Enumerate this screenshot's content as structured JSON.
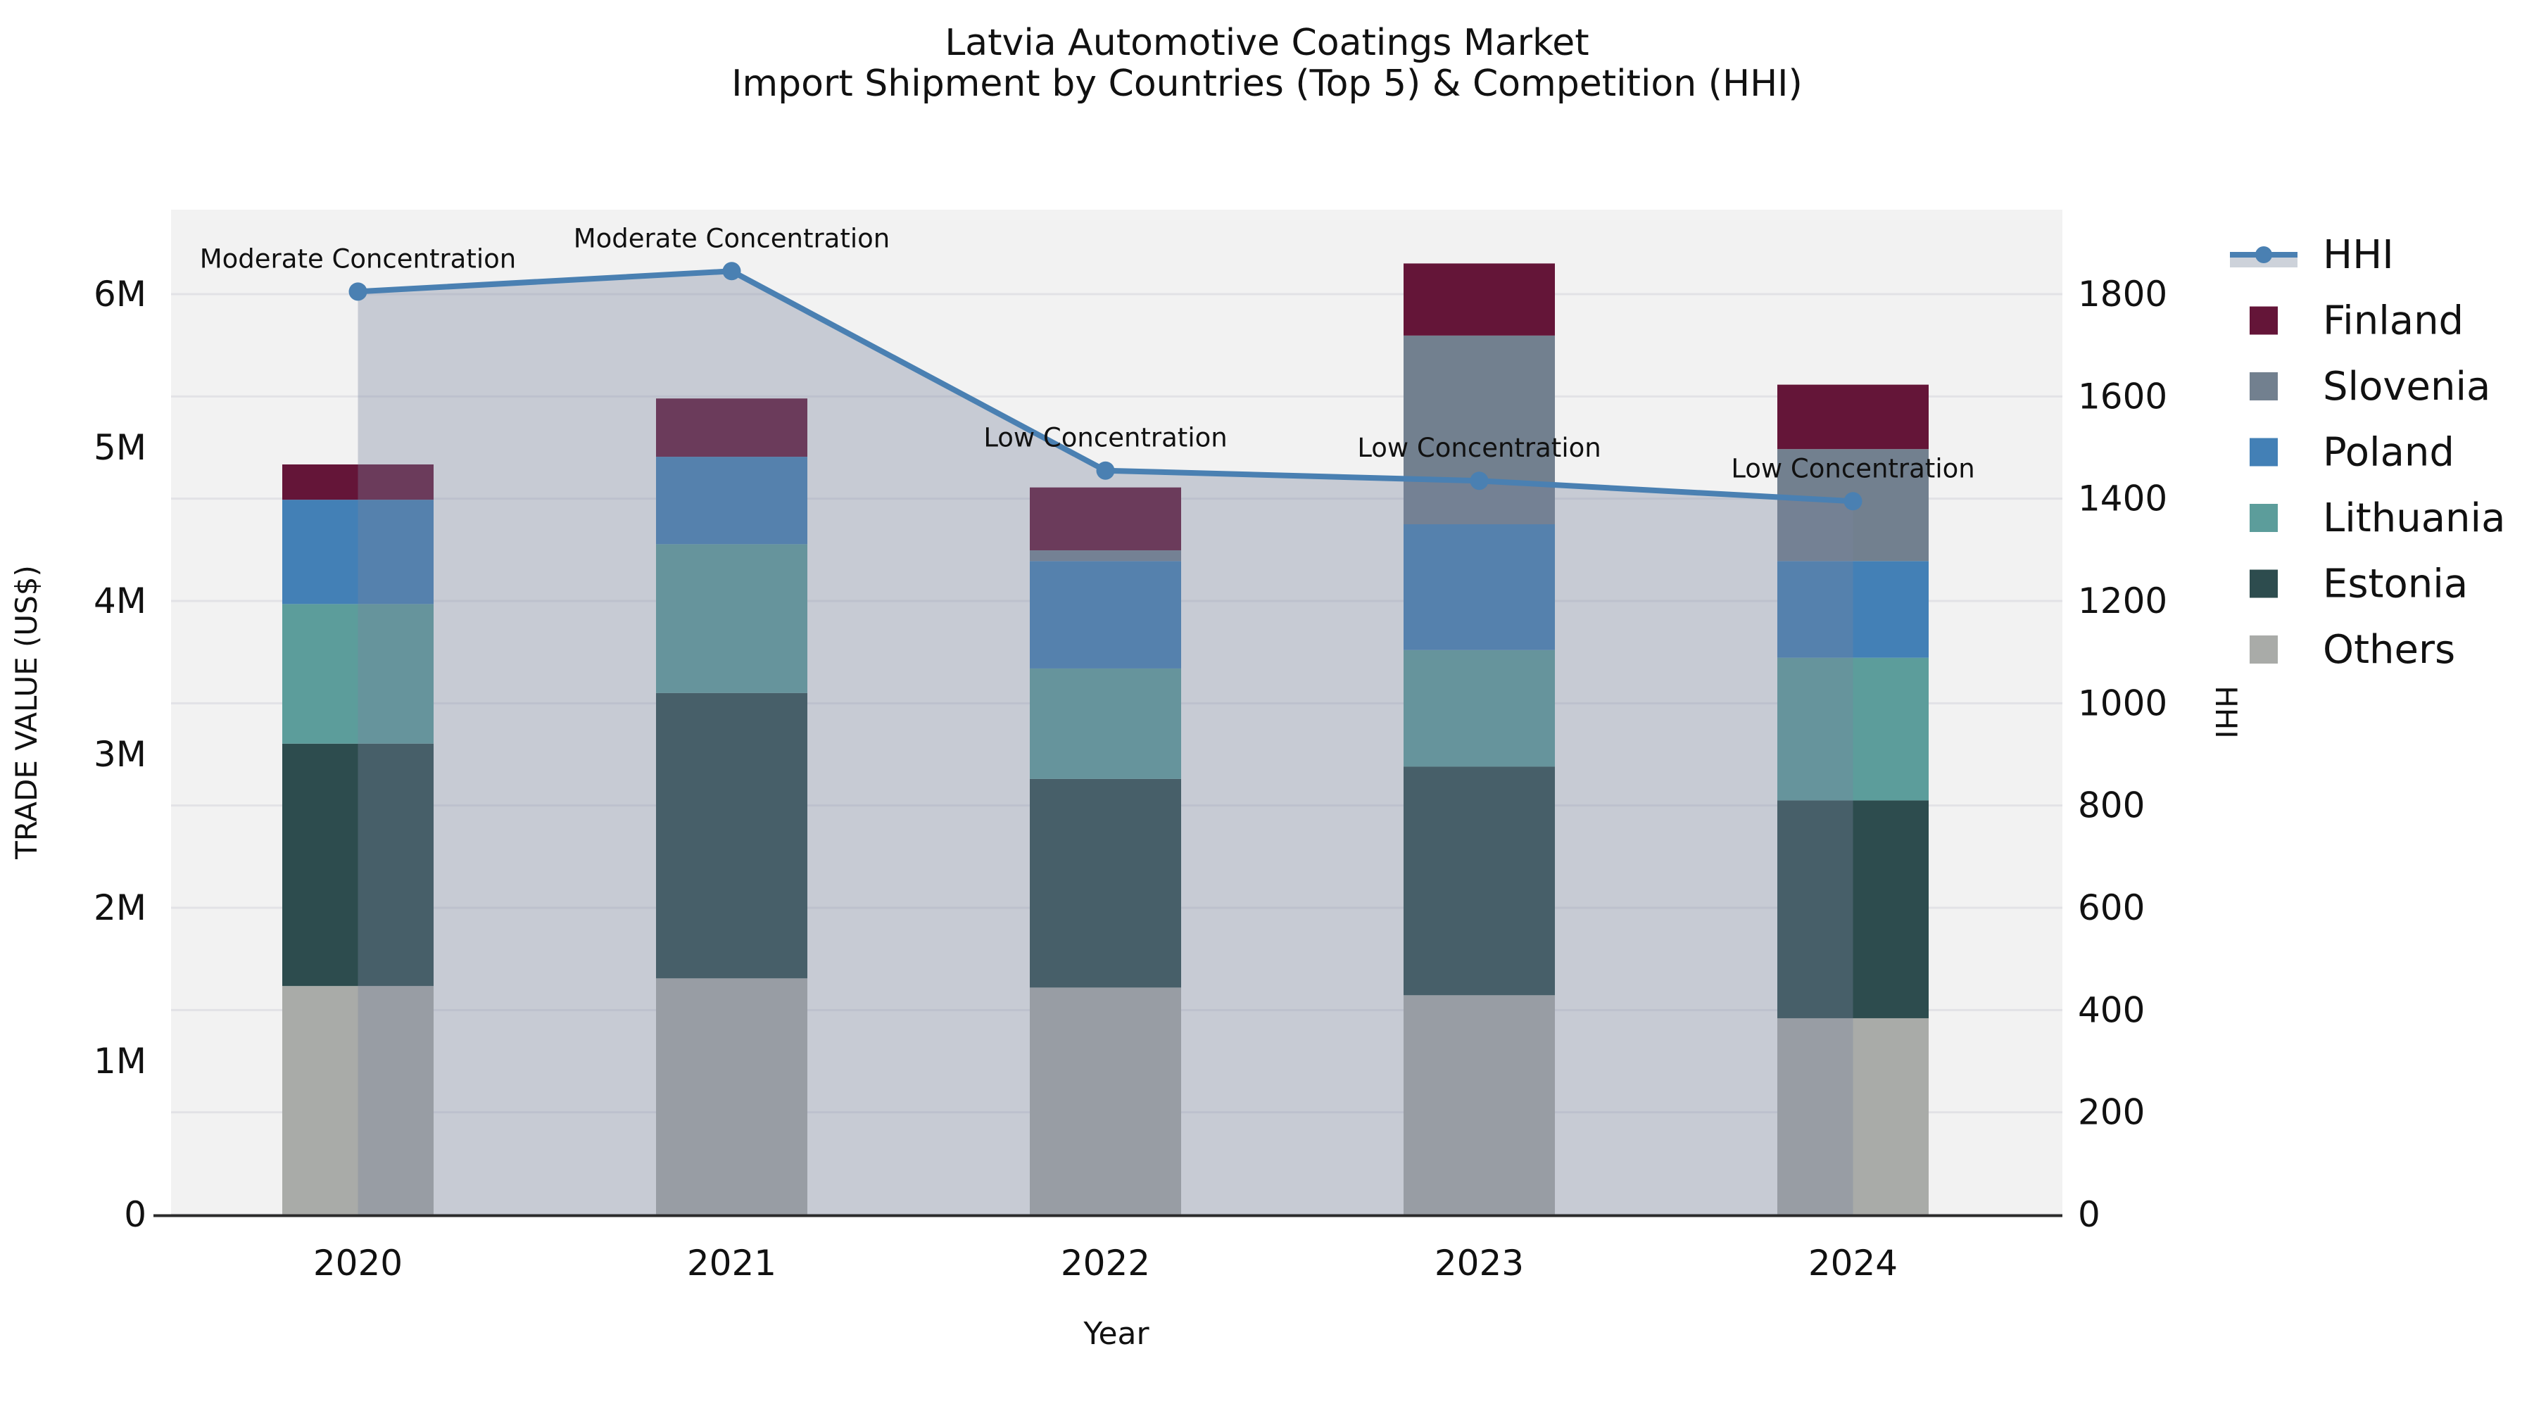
{
  "title": {
    "line1": "Latvia Automotive Coatings Market",
    "line2": "Import Shipment by Countries (Top 5) & Competition (HHI)"
  },
  "axes": {
    "x": {
      "label": "Year",
      "ticks": [
        "2020",
        "2021",
        "2022",
        "2023",
        "2024"
      ]
    },
    "y_left": {
      "label": "TRADE VALUE (US$)",
      "ticks": [
        "0",
        "1M",
        "2M",
        "3M",
        "4M",
        "5M",
        "6M"
      ]
    },
    "y_right": {
      "label": "HHI",
      "ticks": [
        "0",
        "200",
        "400",
        "600",
        "800",
        "1000",
        "1200",
        "1400",
        "1600",
        "1800"
      ]
    }
  },
  "legend": {
    "items": [
      {
        "label": "HHI",
        "type": "line",
        "color": "#4A80B2",
        "band_color": "#CDD2DA"
      },
      {
        "label": "Finland",
        "type": "swatch",
        "color": "#641538"
      },
      {
        "label": "Slovenia",
        "type": "swatch",
        "color": "#72808F"
      },
      {
        "label": "Poland",
        "type": "swatch",
        "color": "#4380B6"
      },
      {
        "label": "Lithuania",
        "type": "swatch",
        "color": "#5C9D9B"
      },
      {
        "label": "Estonia",
        "type": "swatch",
        "color": "#2D4C4E"
      },
      {
        "label": "Others",
        "type": "swatch",
        "color": "#A9ABA8"
      }
    ]
  },
  "colors": {
    "figure_bg": "#ffffff",
    "plot_bg": "#f2f2f2",
    "grid": "#e2e2e6",
    "axis_line": "#2b2b2b",
    "text": "#111111",
    "hhi_line": "#4A80B2",
    "hhi_fill": "rgba(121,133,158,0.35)"
  },
  "chart_data": {
    "type": "bar",
    "subtype": "stacked-bars-with-line-overlay",
    "title": "Latvia Automotive Coatings Market — Import Shipment by Countries (Top 5) & Competition (HHI)",
    "xlabel": "Year",
    "ylabel_left": "TRADE VALUE (US$)",
    "ylabel_right": "HHI",
    "categories": [
      "2020",
      "2021",
      "2022",
      "2023",
      "2024"
    ],
    "series": [
      {
        "name": "Finland",
        "color": "#641538",
        "values": [
          230000,
          380000,
          410000,
          470000,
          420000
        ]
      },
      {
        "name": "Slovenia",
        "color": "#72808F",
        "values": [
          0,
          0,
          70000,
          1230000,
          730000
        ]
      },
      {
        "name": "Poland",
        "color": "#4380B6",
        "values": [
          680000,
          570000,
          700000,
          820000,
          630000
        ]
      },
      {
        "name": "Lithuania",
        "color": "#5C9D9B",
        "values": [
          910000,
          970000,
          720000,
          760000,
          930000
        ]
      },
      {
        "name": "Estonia",
        "color": "#2D4C4E",
        "values": [
          1580000,
          1860000,
          1360000,
          1490000,
          1420000
        ]
      },
      {
        "name": "Others",
        "color": "#A9ABA8",
        "values": [
          1490000,
          1540000,
          1480000,
          1430000,
          1280000
        ]
      }
    ],
    "bar_totals": [
      4890000,
      5320000,
      4740000,
      6200000,
      5410000
    ],
    "line_series": {
      "name": "HHI",
      "color": "#4A80B2",
      "values": [
        1805,
        1845,
        1455,
        1435,
        1395
      ],
      "fill_to_zero": true
    },
    "annotations": [
      "Moderate Concentration",
      "Moderate Concentration",
      "Low Concentration",
      "Low Concentration",
      "Low Concentration"
    ],
    "ylim_left": [
      0,
      6550000
    ],
    "ylim_right": [
      0,
      1965
    ],
    "left_tick_values_musd": [
      0,
      1,
      2,
      3,
      4,
      5,
      6
    ],
    "right_tick_values": [
      0,
      200,
      400,
      600,
      800,
      1000,
      1200,
      1400,
      1600,
      1800
    ],
    "grid": "horizontal gridlines aligned to right (HHI) axis, every 200",
    "legend_position": "right-outside"
  }
}
